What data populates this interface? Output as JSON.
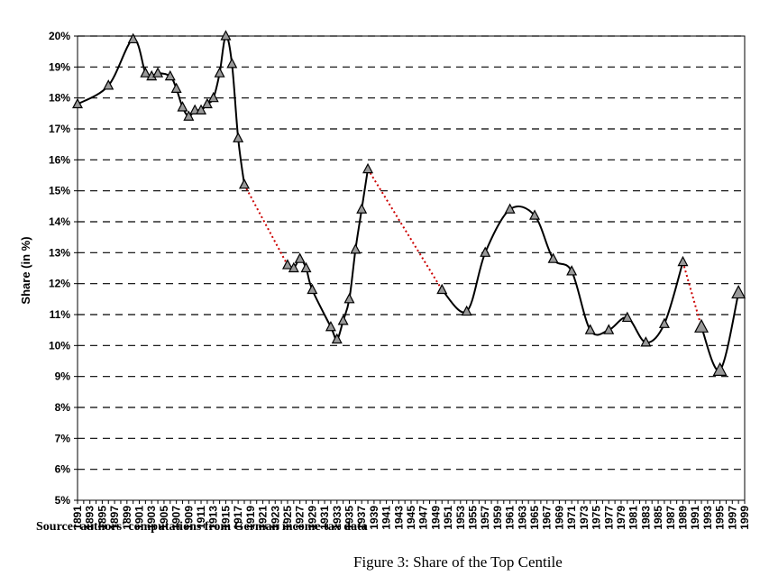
{
  "chart_data": {
    "type": "line",
    "title": "",
    "xlabel": "",
    "ylabel": "Share (in %)",
    "xlim": [
      1891,
      1999
    ],
    "ylim": [
      5,
      20
    ],
    "grid": "horizontal dashed",
    "y_ticks": [
      5,
      6,
      7,
      8,
      9,
      10,
      11,
      12,
      13,
      14,
      15,
      16,
      17,
      18,
      19,
      20
    ],
    "y_tick_labels": [
      "5%",
      "6%",
      "7%",
      "8%",
      "9%",
      "10%",
      "11%",
      "12%",
      "13%",
      "14%",
      "15%",
      "16%",
      "17%",
      "18%",
      "19%",
      "20%"
    ],
    "x_tick_labels": [
      "1891",
      "1893",
      "1895",
      "1897",
      "1899",
      "1901",
      "1903",
      "1905",
      "1907",
      "1909",
      "1911",
      "1913",
      "1915",
      "1917",
      "1919",
      "1921",
      "1923",
      "1925",
      "1927",
      "1929",
      "1931",
      "1933",
      "1935",
      "1937",
      "1939",
      "1941",
      "1943",
      "1945",
      "1947",
      "1949",
      "1951",
      "1953",
      "1955",
      "1957",
      "1959",
      "1961",
      "1963",
      "1965",
      "1967",
      "1969",
      "1971",
      "1973",
      "1975",
      "1977",
      "1979",
      "1981",
      "1983",
      "1985",
      "1987",
      "1989",
      "1991",
      "1993",
      "1995",
      "1997",
      "1999"
    ],
    "series": [
      {
        "segments": [
          [
            [
              1891,
              17.8
            ],
            [
              1896,
              18.4
            ],
            [
              1900,
              19.9
            ],
            [
              1902,
              18.8
            ],
            [
              1903,
              18.7
            ],
            [
              1904,
              18.8
            ],
            [
              1906,
              18.7
            ],
            [
              1907,
              18.3
            ],
            [
              1908,
              17.7
            ],
            [
              1909,
              17.4
            ],
            [
              1910,
              17.6
            ],
            [
              1911,
              17.6
            ],
            [
              1912,
              17.8
            ],
            [
              1913,
              18.0
            ],
            [
              1914,
              18.8
            ],
            [
              1915,
              20.0
            ],
            [
              1916,
              19.1
            ],
            [
              1917,
              16.7
            ],
            [
              1918,
              15.2
            ]
          ],
          [
            [
              1925,
              12.6
            ],
            [
              1926,
              12.5
            ],
            [
              1927,
              12.8
            ],
            [
              1928,
              12.5
            ],
            [
              1929,
              11.8
            ],
            [
              1932,
              10.6
            ],
            [
              1933,
              10.2
            ],
            [
              1934,
              10.8
            ],
            [
              1935,
              11.5
            ],
            [
              1936,
              13.1
            ],
            [
              1937,
              14.4
            ],
            [
              1938,
              15.7
            ]
          ],
          [
            [
              1950,
              11.8
            ],
            [
              1954,
              11.1
            ],
            [
              1957,
              13.0
            ],
            [
              1961,
              14.4
            ],
            [
              1965,
              14.2
            ],
            [
              1968,
              12.8
            ],
            [
              1971,
              12.4
            ],
            [
              1974,
              10.5
            ],
            [
              1977,
              10.5
            ],
            [
              1980,
              10.9
            ],
            [
              1983,
              10.1
            ],
            [
              1986,
              10.7
            ],
            [
              1989,
              12.7
            ]
          ],
          [
            [
              1992,
              10.6
            ],
            [
              1995,
              9.2
            ],
            [
              1998,
              11.7
            ]
          ]
        ],
        "gaps": [
          [
            [
              1918,
              15.2
            ],
            [
              1925,
              12.6
            ]
          ],
          [
            [
              1938,
              15.7
            ],
            [
              1950,
              11.8
            ]
          ],
          [
            [
              1989,
              12.7
            ],
            [
              1992,
              10.6
            ]
          ]
        ]
      }
    ]
  },
  "source_note": "Source: authors' computations from German income tax data",
  "caption": "Figure 3: Share of the Top Centile",
  "colors": {
    "line": "#000000",
    "gap": "#cc0000",
    "marker": "#999999",
    "grid": "#000000"
  }
}
